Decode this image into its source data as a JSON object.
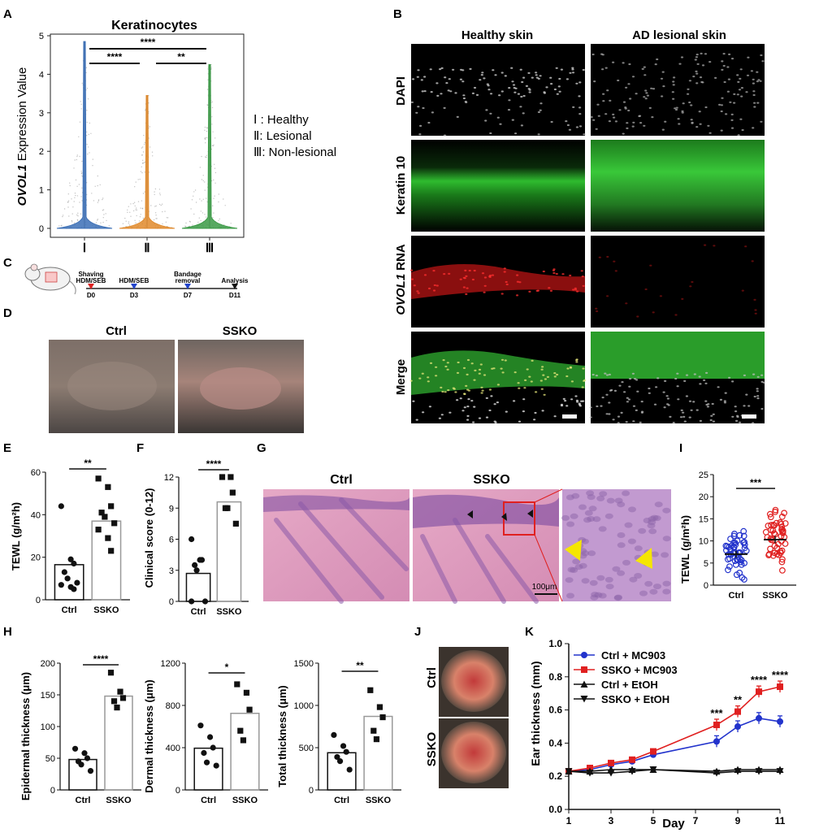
{
  "panel_letters": {
    "A": "A",
    "B": "B",
    "C": "C",
    "D": "D",
    "E": "E",
    "F": "F",
    "G": "G",
    "H": "H",
    "I": "I",
    "J": "J",
    "K": "K"
  },
  "colors": {
    "blue": "#3b6fb6",
    "orange": "#e08a2c",
    "green": "#3a9a45",
    "red": "#e02020",
    "dblue": "#2233cc",
    "black": "#111111"
  },
  "panelA": {
    "title": "Keratinocytes",
    "ylabel_italic": "OVOL1",
    "ylabel_rest": " Expression Value",
    "yticks": [
      "0",
      "1",
      "2",
      "3",
      "4",
      "5"
    ],
    "groups": [
      "Ⅰ",
      "Ⅱ",
      "Ⅲ"
    ],
    "sig": {
      "I_II": "****",
      "II_III": "**",
      "I_III": "****"
    },
    "legend": [
      "Ⅰ : Healthy",
      "Ⅱ: Lesional",
      "Ⅲ: Non-lesional"
    ]
  },
  "panelB": {
    "col_titles": [
      "Healthy skin",
      "AD lesional skin"
    ],
    "row_labels": [
      "DAPI",
      "Keratin 10",
      "RNA",
      "Merge"
    ],
    "row3_italic": "OVOL1"
  },
  "panelC": {
    "steps": [
      {
        "top": "Shaving",
        "mid": "HDM/SEB",
        "day": "D0"
      },
      {
        "top": "",
        "mid": "HDM/SEB",
        "day": "D3"
      },
      {
        "top": "Bandage",
        "mid": "removal",
        "day": "D7"
      },
      {
        "top": "",
        "mid": "Analysis",
        "day": "D11"
      }
    ]
  },
  "panelD": {
    "labels": [
      "Ctrl",
      "SSKO"
    ]
  },
  "panelE": {
    "ylabel": "TEWL (g/m²h)",
    "yticks": [
      "0",
      "20",
      "40",
      "60"
    ],
    "sig": "**",
    "chart_data": {
      "type": "bar",
      "categories": [
        "Ctrl",
        "SSKO"
      ],
      "values": [
        16.5,
        37
      ],
      "points": [
        [
          44,
          19,
          17,
          13,
          10,
          8,
          7,
          6,
          5
        ],
        [
          57,
          53,
          44,
          41,
          39,
          36,
          33,
          29,
          23
        ]
      ],
      "ylim": [
        0,
        60
      ]
    }
  },
  "panelF": {
    "ylabel": "Clinical score (0-12)",
    "yticks": [
      "0",
      "3",
      "6",
      "9",
      "12"
    ],
    "sig": "****",
    "chart_data": {
      "type": "bar",
      "categories": [
        "Ctrl",
        "SSKO"
      ],
      "values": [
        2.7,
        9.6
      ],
      "points": [
        [
          6,
          4,
          4,
          3.5,
          3,
          0,
          0
        ],
        [
          12,
          12,
          10.5,
          9,
          9,
          7.5
        ]
      ],
      "ylim": [
        0,
        12
      ]
    }
  },
  "panelG": {
    "labels": [
      "Ctrl",
      "SSKO"
    ],
    "scale": "100μm"
  },
  "panelH": {
    "charts": [
      {
        "ylabel": "Epidermal thickness (μm)",
        "yticks": [
          "0",
          "50",
          "100",
          "150",
          "200"
        ],
        "sig": "****",
        "chart_data": {
          "type": "bar",
          "categories": [
            "Ctrl",
            "SSKO"
          ],
          "values": [
            48,
            148
          ],
          "points": [
            [
              65,
              58,
              50,
              45,
              40,
              30
            ],
            [
              185,
              155,
              145,
              140,
              130
            ]
          ],
          "ylim": [
            0,
            200
          ]
        }
      },
      {
        "ylabel": "Dermal thickness (μm)",
        "yticks": [
          "0",
          "400",
          "800",
          "1200"
        ],
        "sig": "*",
        "chart_data": {
          "type": "bar",
          "categories": [
            "Ctrl",
            "SSKO"
          ],
          "values": [
            395,
            725
          ],
          "points": [
            [
              610,
              500,
              400,
              350,
              260,
              230
            ],
            [
              1000,
              920,
              760,
              560,
              470
            ]
          ],
          "ylim": [
            0,
            1200
          ]
        }
      },
      {
        "ylabel": "Total thickness (μm)",
        "yticks": [
          "0",
          "500",
          "1000",
          "1500"
        ],
        "sig": "**",
        "chart_data": {
          "type": "bar",
          "categories": [
            "Ctrl",
            "SSKO"
          ],
          "values": [
            440,
            870
          ],
          "points": [
            [
              650,
              520,
              450,
              390,
              340,
              240
            ],
            [
              1180,
              980,
              860,
              700,
              600
            ]
          ],
          "ylim": [
            0,
            1500
          ]
        }
      }
    ]
  },
  "panelI": {
    "ylabel": "TEWL (g/m²h)",
    "yticks": [
      "0",
      "5",
      "10",
      "15",
      "20",
      "25"
    ],
    "sig": "***",
    "chart_data": {
      "type": "scatter",
      "categories": [
        "Ctrl",
        "SSKO"
      ],
      "means": [
        7,
        10.3
      ],
      "ylim": [
        0,
        25
      ]
    }
  },
  "panelJ": {
    "labels": [
      "Ctrl",
      "SSKO"
    ]
  },
  "panelK": {
    "xlabel": "Day",
    "ylabel": "Ear thickness (mm)",
    "xticks": [
      "1",
      "3",
      "5",
      "7",
      "9",
      "11"
    ],
    "yticks": [
      "0.0",
      "0.2",
      "0.4",
      "0.6",
      "0.8",
      "1.0"
    ],
    "sig": [
      {
        "day": 8,
        "text": "***"
      },
      {
        "day": 9,
        "text": "**"
      },
      {
        "day": 10,
        "text": "****"
      },
      {
        "day": 11,
        "text": "****"
      }
    ],
    "chart_data": {
      "type": "line",
      "x": [
        1,
        2,
        3,
        4,
        5,
        8,
        9,
        10,
        11
      ],
      "ylim": [
        0,
        1.0
      ],
      "xlim": [
        1,
        11
      ],
      "series": [
        {
          "name": "Ctrl + MC903",
          "values": [
            0.23,
            0.24,
            0.27,
            0.29,
            0.33,
            0.41,
            0.5,
            0.55,
            0.53
          ]
        },
        {
          "name": "SSKO + MC903",
          "values": [
            0.23,
            0.25,
            0.28,
            0.3,
            0.35,
            0.51,
            0.59,
            0.71,
            0.74
          ]
        },
        {
          "name": "Ctrl + EtOH",
          "values": [
            0.23,
            0.23,
            0.24,
            0.24,
            0.24,
            0.23,
            0.24,
            0.24,
            0.24
          ]
        },
        {
          "name": "SSKO + EtOH",
          "values": [
            0.23,
            0.22,
            0.22,
            0.23,
            0.24,
            0.22,
            0.23,
            0.23,
            0.23
          ]
        }
      ]
    }
  }
}
